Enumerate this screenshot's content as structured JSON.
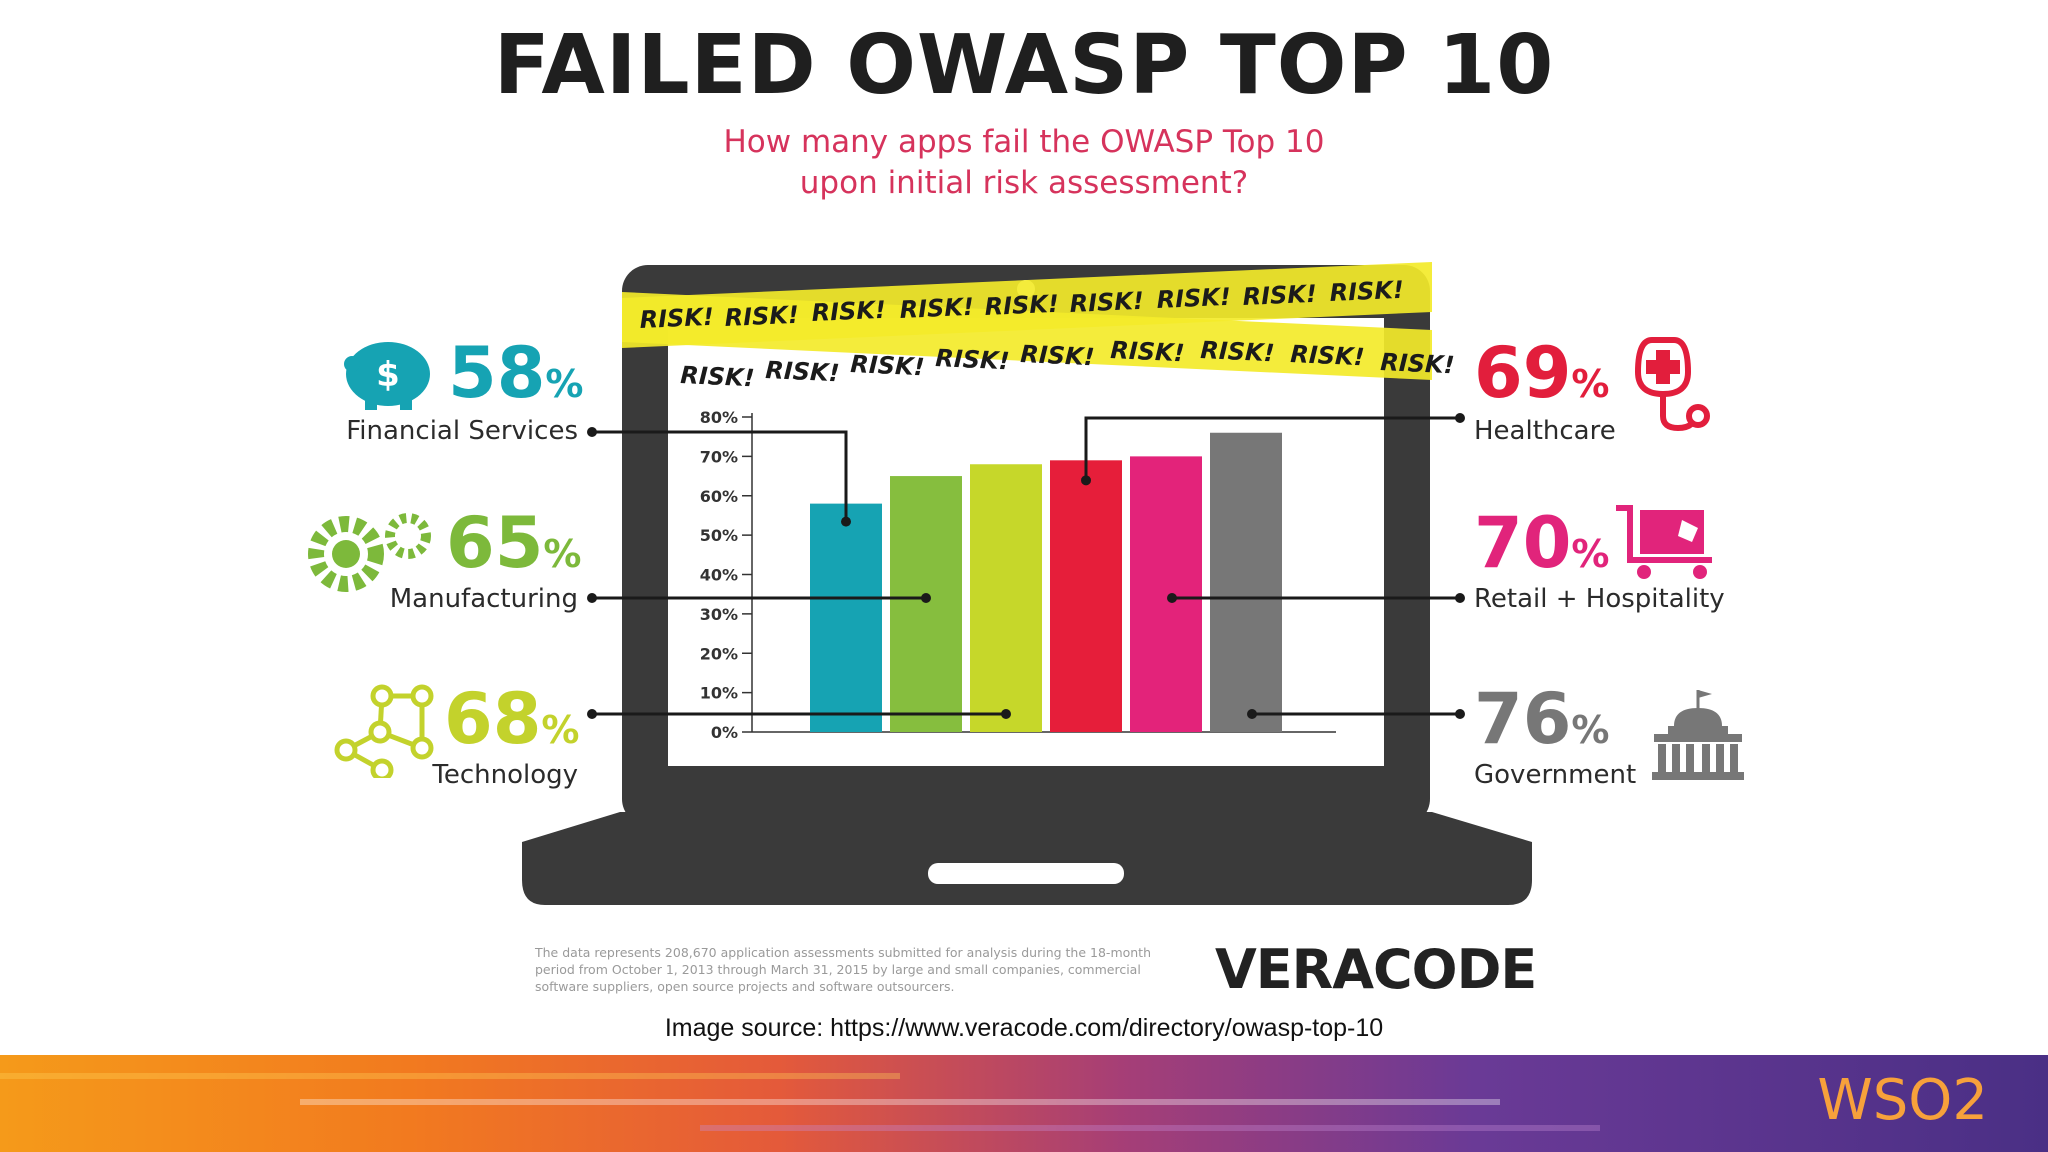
{
  "title": "FAILED OWASP TOP 10",
  "subtitle_line1": "How many apps fail the OWASP Top 10",
  "subtitle_line2": "upon initial risk assessment?",
  "tape_text": "RISK!",
  "footnote": "The data represents 208,670 application assessments submitted for analysis during the 18-month period from October 1, 2013 through March 31, 2015 by large and small companies, commercial software suppliers, open source projects and software outsourcers.",
  "brand": "VERACODE",
  "image_source": "Image source: https://www.veracode.com/directory/owasp-top-10",
  "footer_logo": "WSO2",
  "industries": [
    {
      "name": "Financial Services",
      "value": "58",
      "unit": "%",
      "color": "#16a3b3",
      "icon": "piggy-bank-icon"
    },
    {
      "name": "Manufacturing",
      "value": "65",
      "unit": "%",
      "color": "#7db93b",
      "icon": "gears-icon"
    },
    {
      "name": "Technology",
      "value": "68",
      "unit": "%",
      "color": "#c3d22c",
      "icon": "network-nodes-icon"
    },
    {
      "name": "Healthcare",
      "value": "69",
      "unit": "%",
      "color": "#e21e3c",
      "icon": "stethoscope-icon"
    },
    {
      "name": "Retail + Hospitality",
      "value": "70",
      "unit": "%",
      "color": "#e1247b",
      "icon": "shopping-cart-icon"
    },
    {
      "name": "Government",
      "value": "76",
      "unit": "%",
      "color": "#777777",
      "icon": "capitol-building-icon"
    }
  ],
  "chart_data": {
    "type": "bar",
    "title": "FAILED OWASP TOP 10",
    "subtitle": "How many apps fail the OWASP Top 10 upon initial risk assessment?",
    "categories": [
      "Financial Services",
      "Manufacturing",
      "Technology",
      "Healthcare",
      "Retail + Hospitality",
      "Government"
    ],
    "values": [
      58,
      65,
      68,
      69,
      70,
      76
    ],
    "colors": [
      "#16a3b3",
      "#86be3e",
      "#c6d72a",
      "#e61e3a",
      "#e3237a",
      "#777777"
    ],
    "ylim": [
      0,
      80
    ],
    "yticks": [
      "0%",
      "10%",
      "20%",
      "30%",
      "40%",
      "50%",
      "60%",
      "70%",
      "80%"
    ],
    "xlabel": "",
    "ylabel": "",
    "grid": false
  }
}
